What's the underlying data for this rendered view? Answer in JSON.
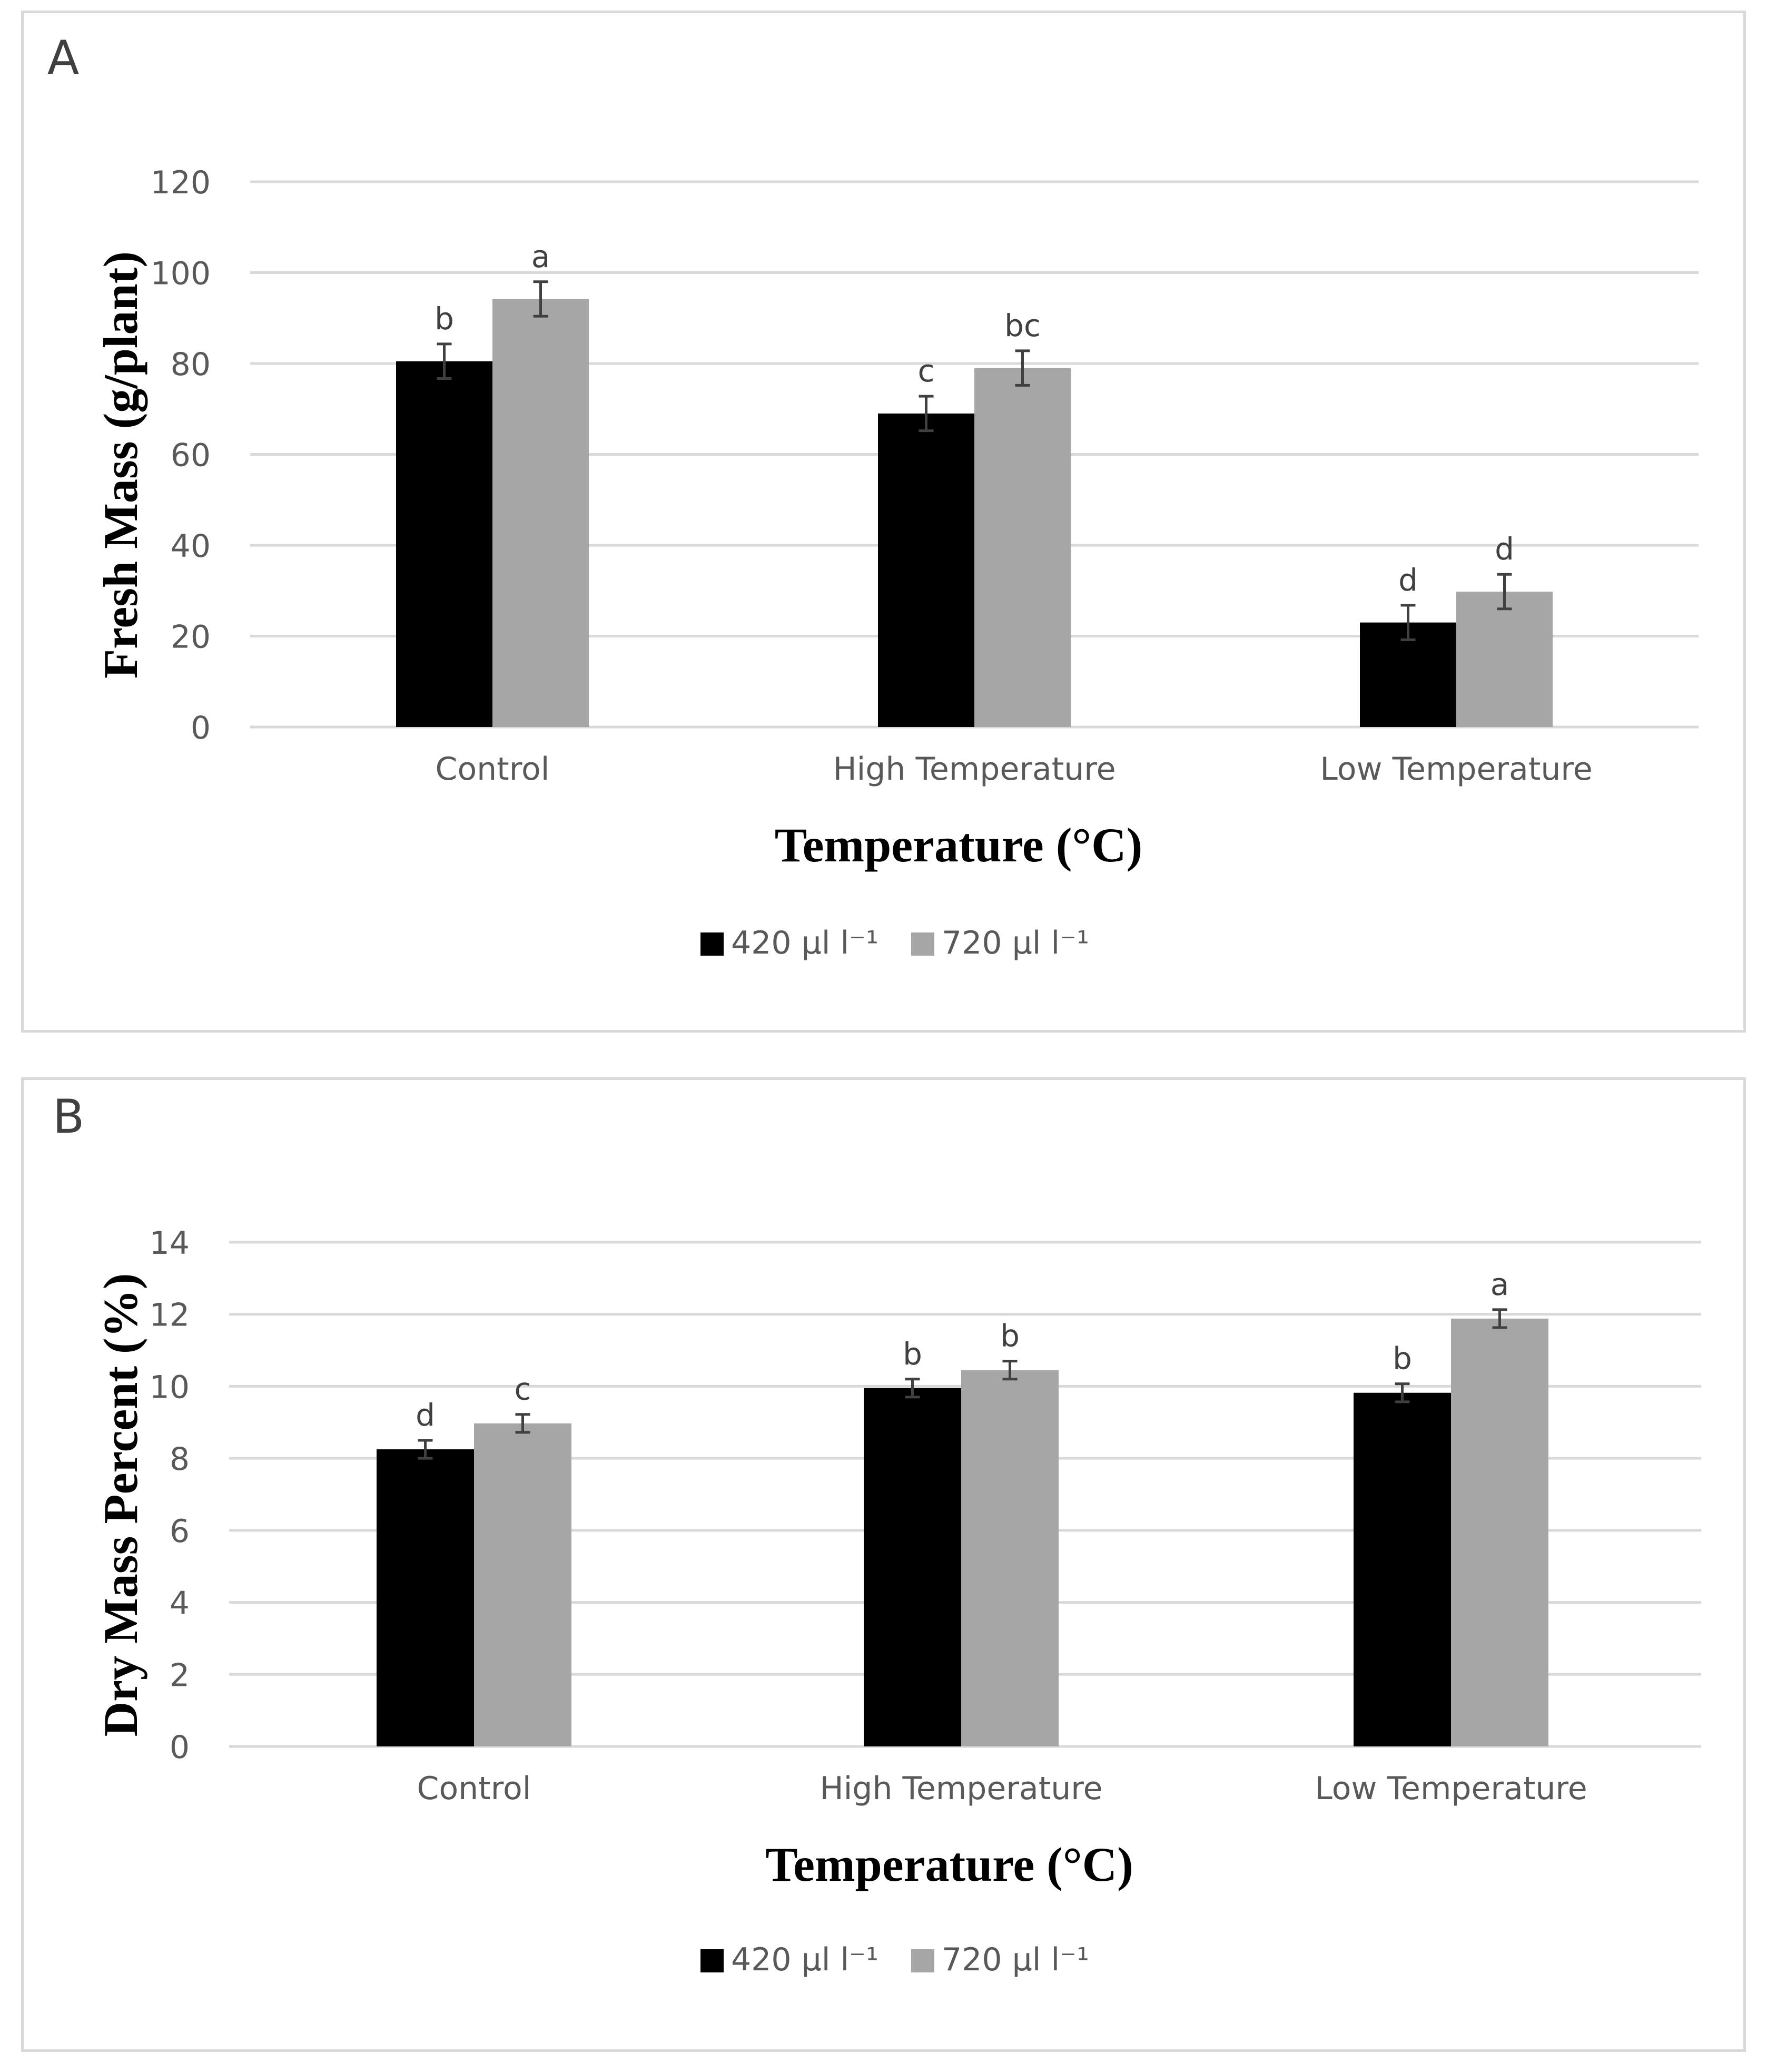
{
  "colors": {
    "series_420": "#000000",
    "series_720": "#a6a6a6",
    "grid": "#d9d9d9",
    "tick_text": "#595959",
    "error_bar": "#404040"
  },
  "chart_data": [
    {
      "panel_label": "A",
      "type": "bar",
      "title": "",
      "xlabel": "Temperature (°C)",
      "ylabel": "Fresh Mass (g/plant)",
      "ylim": [
        0,
        120
      ],
      "yticks": [
        0,
        20,
        40,
        60,
        80,
        100,
        120
      ],
      "ytick_labels": [
        "0",
        "20",
        "40",
        "60",
        "80",
        "100",
        "120"
      ],
      "categories": [
        "Control",
        "High Temperature",
        "Low Temperature"
      ],
      "series": [
        {
          "name": "420 µl l⁻¹",
          "values": [
            80.5,
            69.0,
            23.0
          ],
          "errors": [
            3.8,
            3.8,
            3.8
          ],
          "letters": [
            "b",
            "c",
            "d"
          ]
        },
        {
          "name": "720 µl l⁻¹",
          "values": [
            94.2,
            79.0,
            29.8
          ],
          "errors": [
            3.8,
            3.8,
            3.8
          ],
          "letters": [
            "a",
            "bc",
            "d"
          ]
        }
      ],
      "legend": "bottom-center",
      "grid": true
    },
    {
      "panel_label": "B",
      "type": "bar",
      "title": "",
      "xlabel": "Temperature (°C)",
      "ylabel": "Dry Mass Percent (%)",
      "ylim": [
        0,
        14
      ],
      "yticks": [
        0,
        2,
        4,
        6,
        8,
        10,
        12,
        14
      ],
      "ytick_labels": [
        "0",
        "2",
        "4",
        "6",
        "8",
        "10",
        "12",
        "14"
      ],
      "categories": [
        "Control",
        "High Temperature",
        "Low Temperature"
      ],
      "series": [
        {
          "name": "420 µl l⁻¹",
          "values": [
            8.25,
            9.95,
            9.82
          ],
          "errors": [
            0.25,
            0.25,
            0.25
          ],
          "letters": [
            "d",
            "b",
            "b"
          ]
        },
        {
          "name": "720 µl l⁻¹",
          "values": [
            8.97,
            10.45,
            11.88
          ],
          "errors": [
            0.25,
            0.25,
            0.25
          ],
          "letters": [
            "c",
            "b",
            "a"
          ]
        }
      ],
      "legend": "bottom-center",
      "grid": true
    }
  ]
}
